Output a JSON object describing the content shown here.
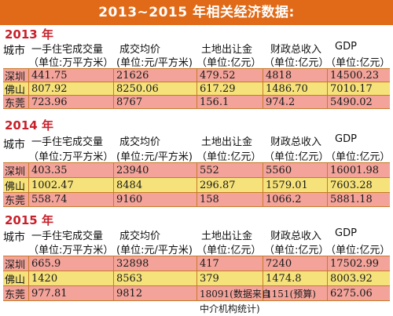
{
  "title": "2013~2015 年相关经济数据:",
  "headers": {
    "city": "城市",
    "c1_line1": "一手住宅成交量",
    "c1_line2": "（单位:万平方米）",
    "c2_line1": "成交均价",
    "c2_line2": "(单位:元/平方米)",
    "c3_line1": "土地出让金",
    "c3_line2": "（单位:亿元）",
    "c4_line1": "财政总收入",
    "c4_line2": "（单位:亿元）",
    "c5_line1": "GDP",
    "c5_line2": "（单位:亿元）"
  },
  "sections": [
    {
      "year": "2013 年",
      "rows": [
        {
          "city": "深圳",
          "v1": "441.75",
          "v2": "21626",
          "v3": "479.52",
          "v4": "4818",
          "v5": "14500.23"
        },
        {
          "city": "佛山",
          "v1": "807.92",
          "v2": "8250.06",
          "v3": "617.29",
          "v4": "1486.70",
          "v5": "7010.17"
        },
        {
          "city": "东莞",
          "v1": "723.96",
          "v2": "8767",
          "v3": "156.1",
          "v4": "974.2",
          "v5": "5490.02"
        }
      ]
    },
    {
      "year": "2014 年",
      "rows": [
        {
          "city": "深圳",
          "v1": "403.35",
          "v2": "23940",
          "v3": "552",
          "v4": "5560",
          "v5": "16001.98"
        },
        {
          "city": "佛山",
          "v1": "1002.47",
          "v2": "8484",
          "v3": "296.87",
          "v4": "1579.01",
          "v5": "7603.28"
        },
        {
          "city": "东莞",
          "v1": "558.74",
          "v2": "9160",
          "v3": "158",
          "v4": "1066.2",
          "v5": "5881.18"
        }
      ]
    },
    {
      "year": "2015 年",
      "rows": [
        {
          "city": "深圳",
          "v1": "665.9",
          "v2": "32898",
          "v3": "417",
          "v4": "7240",
          "v5": "17502.99"
        },
        {
          "city": "佛山",
          "v1": "1420",
          "v2": "8563",
          "v3": "379",
          "v4": "1474.8",
          "v5": "8003.92"
        },
        {
          "city": "东莞",
          "v1": "977.81",
          "v2": "9812",
          "v3": "18091(数据来自",
          "v4": "1151(预算)",
          "v5": "6275.06"
        }
      ]
    }
  ],
  "footnote": "中介机构统计)"
}
